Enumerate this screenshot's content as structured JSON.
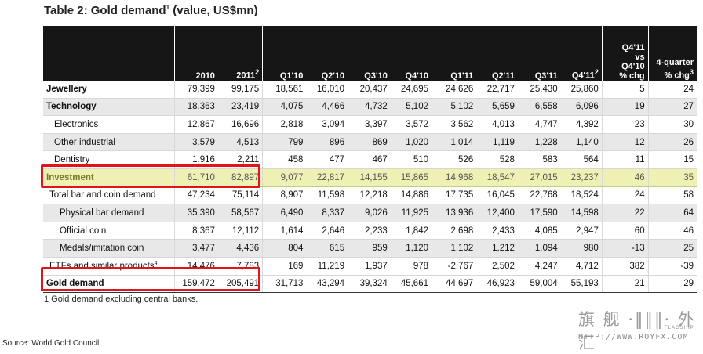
{
  "title": "Table 2: Gold demand",
  "title_sup": "1",
  "title_unit": " (value, US$mn)",
  "headers": {
    "label": "",
    "y2010": "2010",
    "y2011": "2011",
    "y2011_sup": "2",
    "q1_10": "Q1'10",
    "q2_10": "Q2'10",
    "q3_10": "Q3'10",
    "q4_10": "Q4'10",
    "q1_11": "Q1'11",
    "q2_11": "Q2'11",
    "q3_11": "Q3'11",
    "q4_11": "Q4'11",
    "q4_11_sup": "2",
    "chg_line1": "Q4'11",
    "chg_line2": "vs",
    "chg_line3": "Q4'10",
    "chg_line4": "% chg",
    "four_line1": "4-quarter",
    "four_line2": "% chg",
    "four_sup": "3"
  },
  "rows": [
    {
      "label": "Jewellery",
      "sup": "",
      "v": [
        "79,399",
        "99,175",
        "18,561",
        "16,010",
        "20,437",
        "24,695",
        "24,626",
        "22,717",
        "25,430",
        "25,860",
        "5",
        "24"
      ]
    },
    {
      "label": "Technology",
      "sup": "",
      "v": [
        "18,363",
        "23,419",
        "4,075",
        "4,466",
        "4,732",
        "5,102",
        "5,102",
        "5,659",
        "6,558",
        "6,096",
        "19",
        "27"
      ]
    },
    {
      "label": "Electronics",
      "sup": "",
      "v": [
        "12,867",
        "16,696",
        "2,818",
        "3,094",
        "3,397",
        "3,572",
        "3,562",
        "4,013",
        "4,747",
        "4,392",
        "23",
        "30"
      ]
    },
    {
      "label": "Other industrial",
      "sup": "",
      "v": [
        "3,579",
        "4,513",
        "799",
        "896",
        "869",
        "1,020",
        "1,014",
        "1,119",
        "1,228",
        "1,140",
        "12",
        "26"
      ]
    },
    {
      "label": "Dentistry",
      "sup": "",
      "v": [
        "1,916",
        "2,211",
        "458",
        "477",
        "467",
        "510",
        "526",
        "528",
        "583",
        "564",
        "11",
        "15"
      ]
    },
    {
      "label": "Investment",
      "sup": "",
      "v": [
        "61,710",
        "82,897",
        "9,077",
        "22,817",
        "14,155",
        "15,865",
        "14,968",
        "18,547",
        "27,015",
        "23,237",
        "46",
        "35"
      ]
    },
    {
      "label": "Total bar and coin demand",
      "sup": "",
      "v": [
        "47,234",
        "75,114",
        "8,907",
        "11,598",
        "12,218",
        "14,886",
        "17,735",
        "16,045",
        "22,768",
        "18,524",
        "24",
        "58"
      ]
    },
    {
      "label": "Physical bar demand",
      "sup": "",
      "v": [
        "35,390",
        "58,567",
        "6,490",
        "8,337",
        "9,026",
        "11,925",
        "13,936",
        "12,400",
        "17,590",
        "14,598",
        "22",
        "64"
      ]
    },
    {
      "label": "Official coin",
      "sup": "",
      "v": [
        "8,367",
        "12,112",
        "1,614",
        "2,646",
        "2,233",
        "1,842",
        "2,698",
        "2,433",
        "4,085",
        "2,947",
        "60",
        "46"
      ]
    },
    {
      "label": "Medals/imitation coin",
      "sup": "",
      "v": [
        "3,477",
        "4,436",
        "804",
        "615",
        "959",
        "1,120",
        "1,102",
        "1,212",
        "1,094",
        "980",
        "-13",
        "25"
      ]
    },
    {
      "label": "ETFs and similar products",
      "sup": "4",
      "v": [
        "14,476",
        "7,783",
        "169",
        "11,219",
        "1,937",
        "978",
        "-2,767",
        "2,502",
        "4,247",
        "4,712",
        "382",
        "-39"
      ]
    },
    {
      "label": "Gold demand",
      "sup": "",
      "v": [
        "159,472",
        "205,491",
        "31,713",
        "43,294",
        "39,324",
        "45,661",
        "44,697",
        "46,923",
        "59,004",
        "55,193",
        "21",
        "29"
      ]
    }
  ],
  "footnote": "1  Gold demand excluding central banks.",
  "source": "Source: World Gold Council",
  "watermark": {
    "cn": "旗 舰 ·‖‖‖· 外 汇",
    "sub": "FLAGSHIP",
    "url": "HTTP://WWW.ROYFX.COM"
  },
  "colors": {
    "header_bg": "#161616",
    "investment_bg": "#eef0b4",
    "highlight_border": "#e0141b"
  }
}
